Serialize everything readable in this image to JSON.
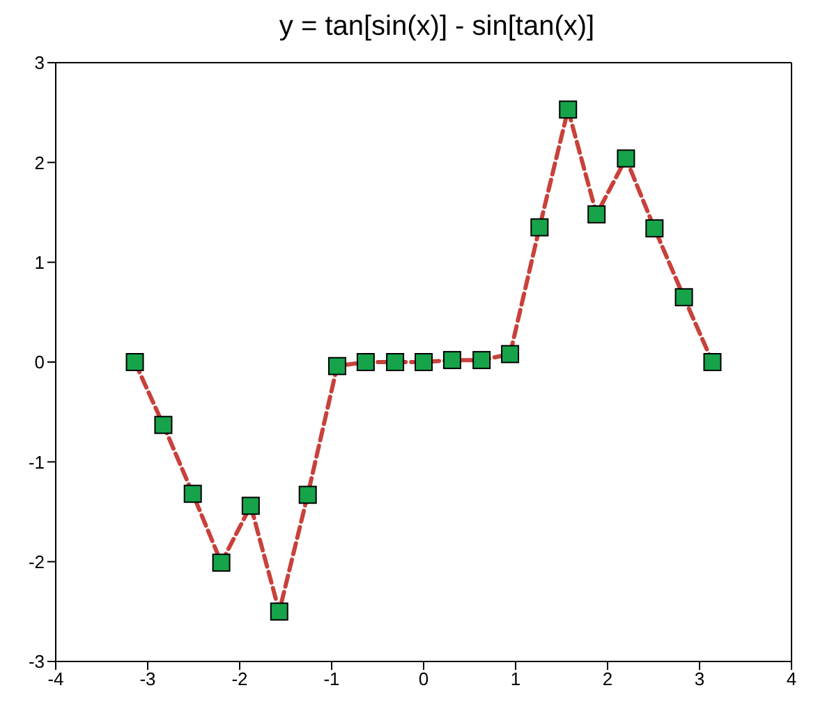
{
  "chart_data": {
    "type": "line",
    "title": "y = tan[sin(x)] - sin[tan(x)]",
    "x": [
      -3.14,
      -2.83,
      -2.51,
      -2.2,
      -1.88,
      -1.57,
      -1.26,
      -0.94,
      -0.63,
      -0.31,
      0,
      0.31,
      0.63,
      0.94,
      1.26,
      1.57,
      1.88,
      2.2,
      2.51,
      2.83,
      3.14
    ],
    "series": [
      {
        "color": "#c8413a",
        "colors": [
          "#16a34a",
          "#16a34a",
          "#16a34a",
          "#16a34a",
          "#16a34a",
          "#16a34a",
          "#16a34a",
          "#16a34a",
          "#16a34a",
          "#16a34a",
          "#16a34a",
          "#16a34a",
          "#16a34a",
          "#16a34a",
          "#16a34a",
          "#16a34a",
          "#16a34a",
          "#16a34a",
          "#16a34a",
          "#16a34a",
          "#16a34a"
        ],
        "values": [
          0,
          -0.63,
          -1.32,
          -2.01,
          -1.44,
          -2.5,
          -1.33,
          -0.04,
          0,
          0,
          0,
          0.02,
          0.02,
          0.08,
          1.35,
          2.53,
          1.48,
          2.04,
          1.34,
          0.65,
          0
        ]
      }
    ],
    "xlim": [
      -4,
      4
    ],
    "xticks": [
      -4,
      -3,
      -2,
      -1,
      0,
      1,
      2,
      3,
      4
    ],
    "ylim": [
      -3,
      3
    ],
    "yticks": [
      -3,
      -2,
      -1,
      0,
      1,
      2,
      3
    ],
    "grid": false,
    "marker": "square",
    "line_style": "dashed"
  }
}
